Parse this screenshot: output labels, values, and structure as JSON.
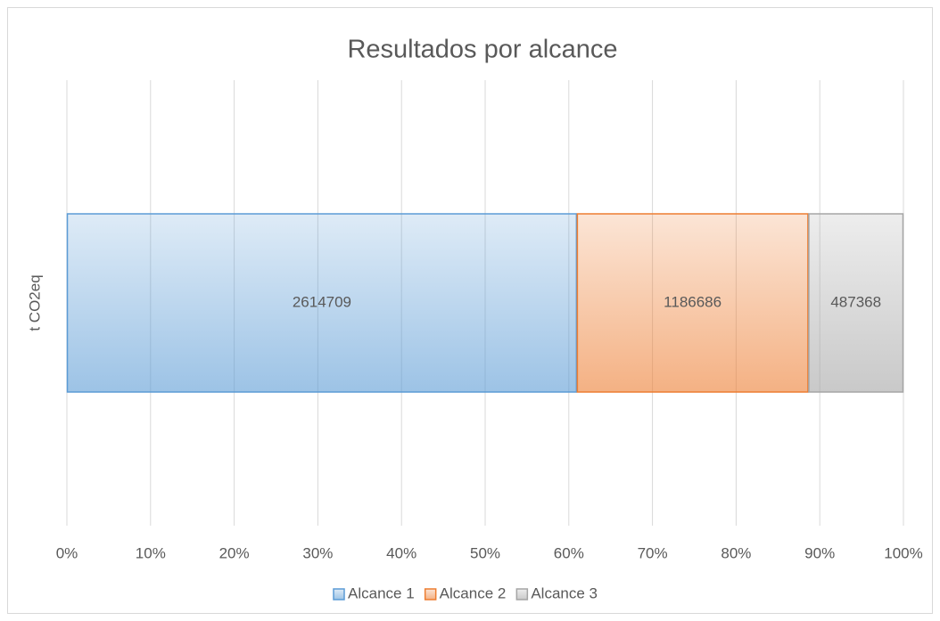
{
  "chart_data": {
    "type": "bar100",
    "title": "Resultados por alcance",
    "categories": [
      "t CO2eq"
    ],
    "series": [
      {
        "name": "Alcance 1",
        "color": "#5b9bd5",
        "values": [
          2614709
        ]
      },
      {
        "name": "Alcance 2",
        "color": "#ed7d31",
        "values": [
          1186686
        ]
      },
      {
        "name": "Alcance 3",
        "color": "#a5a5a5",
        "values": [
          487368
        ]
      }
    ],
    "xlim": [
      0,
      100
    ],
    "xticks": [
      {
        "value": 0,
        "label": "0%"
      },
      {
        "value": 10,
        "label": "10%"
      },
      {
        "value": 20,
        "label": "20%"
      },
      {
        "value": 30,
        "label": "30%"
      },
      {
        "value": 40,
        "label": "40%"
      },
      {
        "value": 50,
        "label": "50%"
      },
      {
        "value": 60,
        "label": "60%"
      },
      {
        "value": 70,
        "label": "70%"
      },
      {
        "value": 80,
        "label": "80%"
      },
      {
        "value": 90,
        "label": "90%"
      },
      {
        "value": 100,
        "label": "100%"
      }
    ],
    "grid": true,
    "legend": "bottom"
  }
}
